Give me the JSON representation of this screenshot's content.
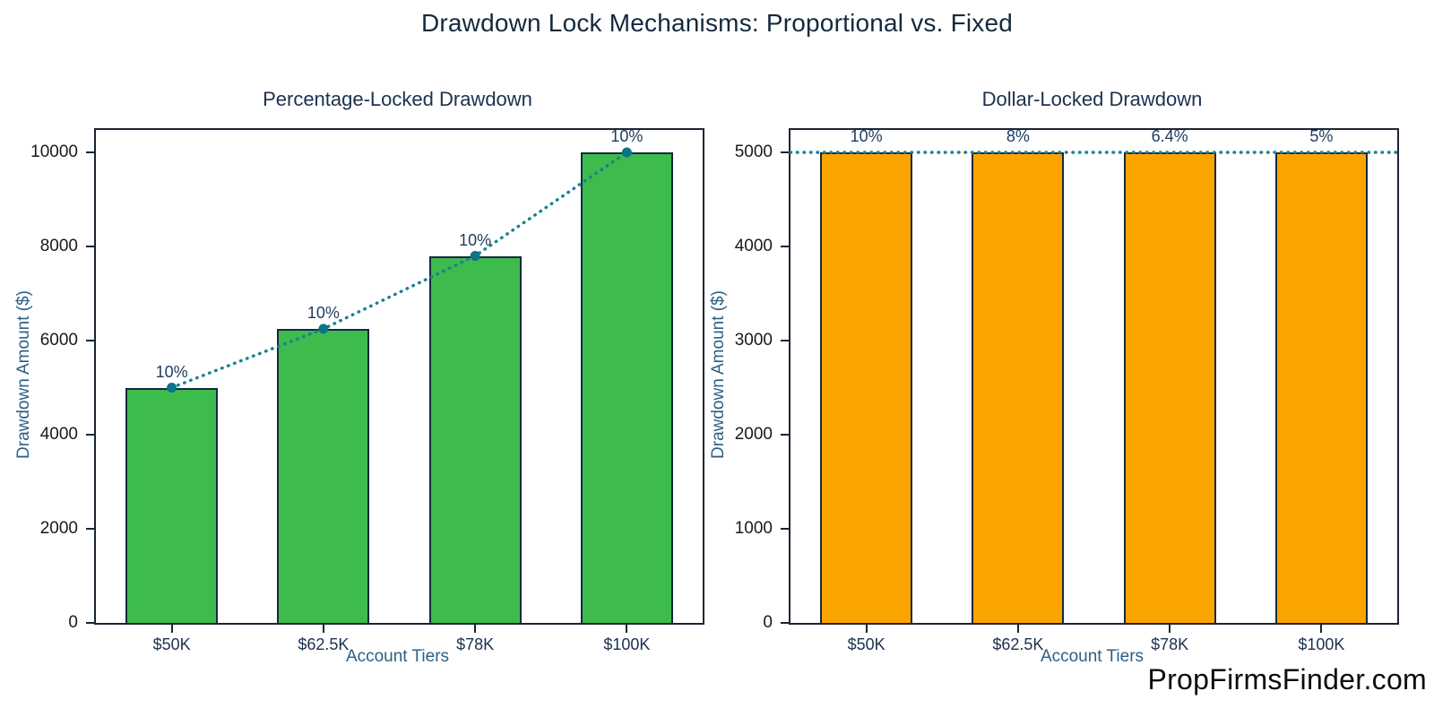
{
  "main": {
    "title": "Drawdown Lock Mechanisms: Proportional vs. Fixed",
    "watermark": "PropFirmsFinder.com"
  },
  "colors": {
    "bar_green": "#3dbb4c",
    "bar_orange": "#fba400",
    "bar_edge": "#15293e",
    "frame": "#1a2433",
    "trend_teal": "#1a8292",
    "trend_dot": "#0d7386",
    "title_navy": "#15293e",
    "axis_label_blue": "#2d6085"
  },
  "chart_data": [
    {
      "type": "bar",
      "title": "Percentage-Locked Drawdown",
      "categories": [
        "$50K",
        "$62.5K",
        "$78K",
        "$100K"
      ],
      "values": [
        5000,
        6250,
        7800,
        10000
      ],
      "bar_labels": [
        "10%",
        "10%",
        "10%",
        "10%"
      ],
      "bar_color": "#3dbb4c",
      "trend": "connect-tops",
      "trend_markers": true,
      "xlabel": "Account Tiers",
      "ylabel": "Drawdown Amount ($)",
      "yticks": [
        0,
        2000,
        4000,
        6000,
        8000,
        10000
      ],
      "ylim": [
        0,
        10476
      ],
      "grid": false,
      "legend": "none"
    },
    {
      "type": "bar",
      "title": "Dollar-Locked Drawdown",
      "categories": [
        "$50K",
        "$62.5K",
        "$78K",
        "$100K"
      ],
      "values": [
        5000,
        5000,
        5000,
        5000
      ],
      "bar_labels": [
        "10%",
        "8%",
        "6.4%",
        "5%"
      ],
      "bar_color": "#fba400",
      "trend": "hline",
      "trend_hline_value": 5000,
      "trend_markers": false,
      "xlabel": "Account Tiers",
      "ylabel": "Drawdown Amount ($)",
      "yticks": [
        0,
        1000,
        2000,
        3000,
        4000,
        5000
      ],
      "ylim": [
        0,
        5238
      ],
      "grid": false,
      "legend": "none"
    }
  ]
}
